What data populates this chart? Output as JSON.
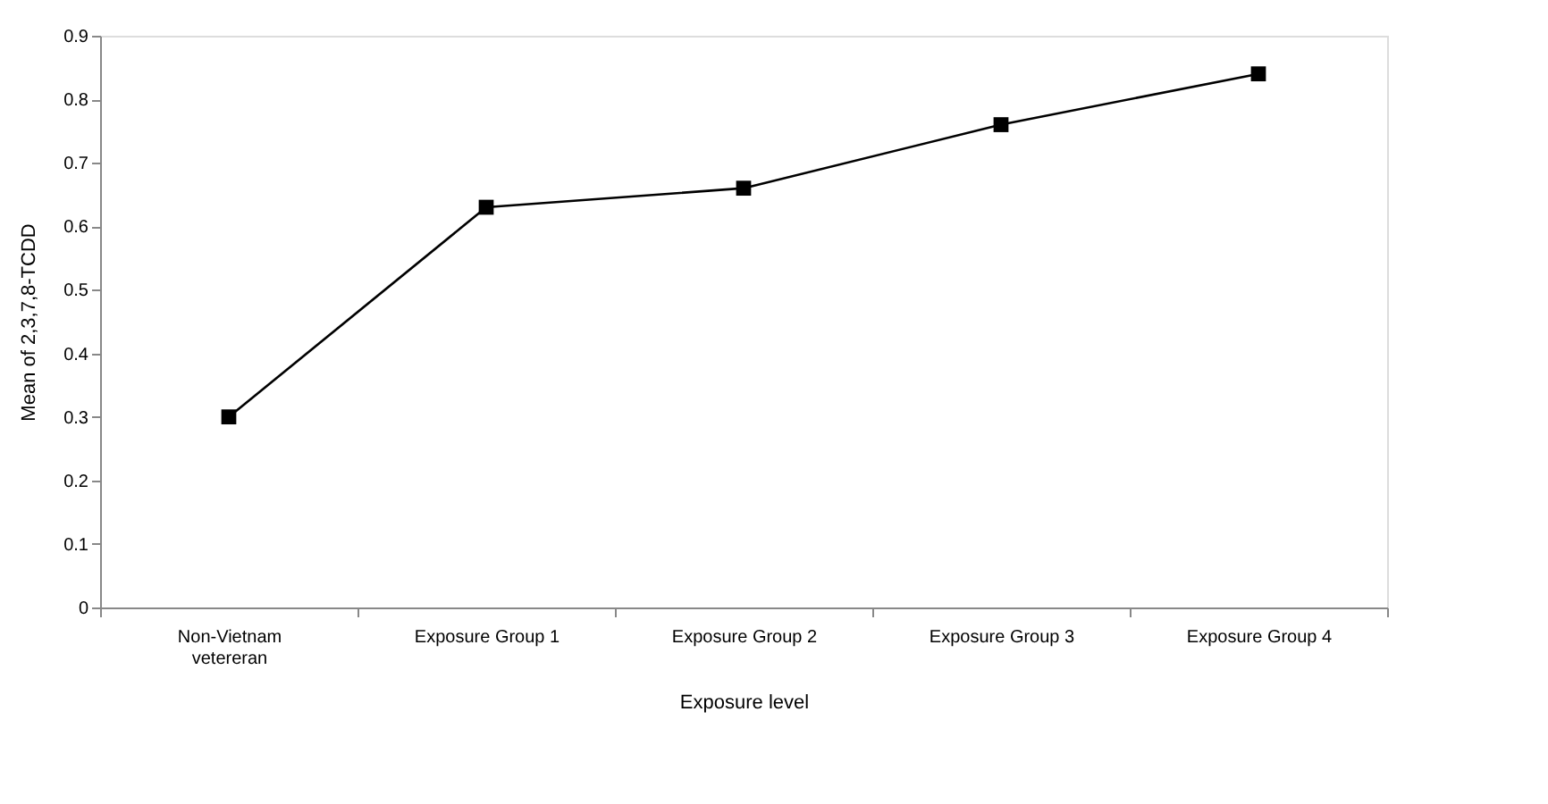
{
  "chart_data": {
    "type": "line",
    "xlabel": "Exposure level",
    "ylabel": "Mean of 2,3,7,8-TCDD",
    "categories": [
      "Non-Vietnam\nvetereran",
      "Exposure Group 1",
      "Exposure Group 2",
      "Exposure Group 3",
      "Exposure Group 4"
    ],
    "series": [
      {
        "color": "#000000",
        "values": [
          0.3,
          0.63,
          0.66,
          0.76,
          0.84
        ]
      }
    ],
    "ylim": [
      0,
      0.9
    ],
    "yticks": [
      0,
      0.1,
      0.2,
      0.3,
      0.4,
      0.5,
      0.6,
      0.7,
      0.8,
      0.9
    ],
    "grid": false,
    "marker": "square",
    "line_style": "solid"
  }
}
